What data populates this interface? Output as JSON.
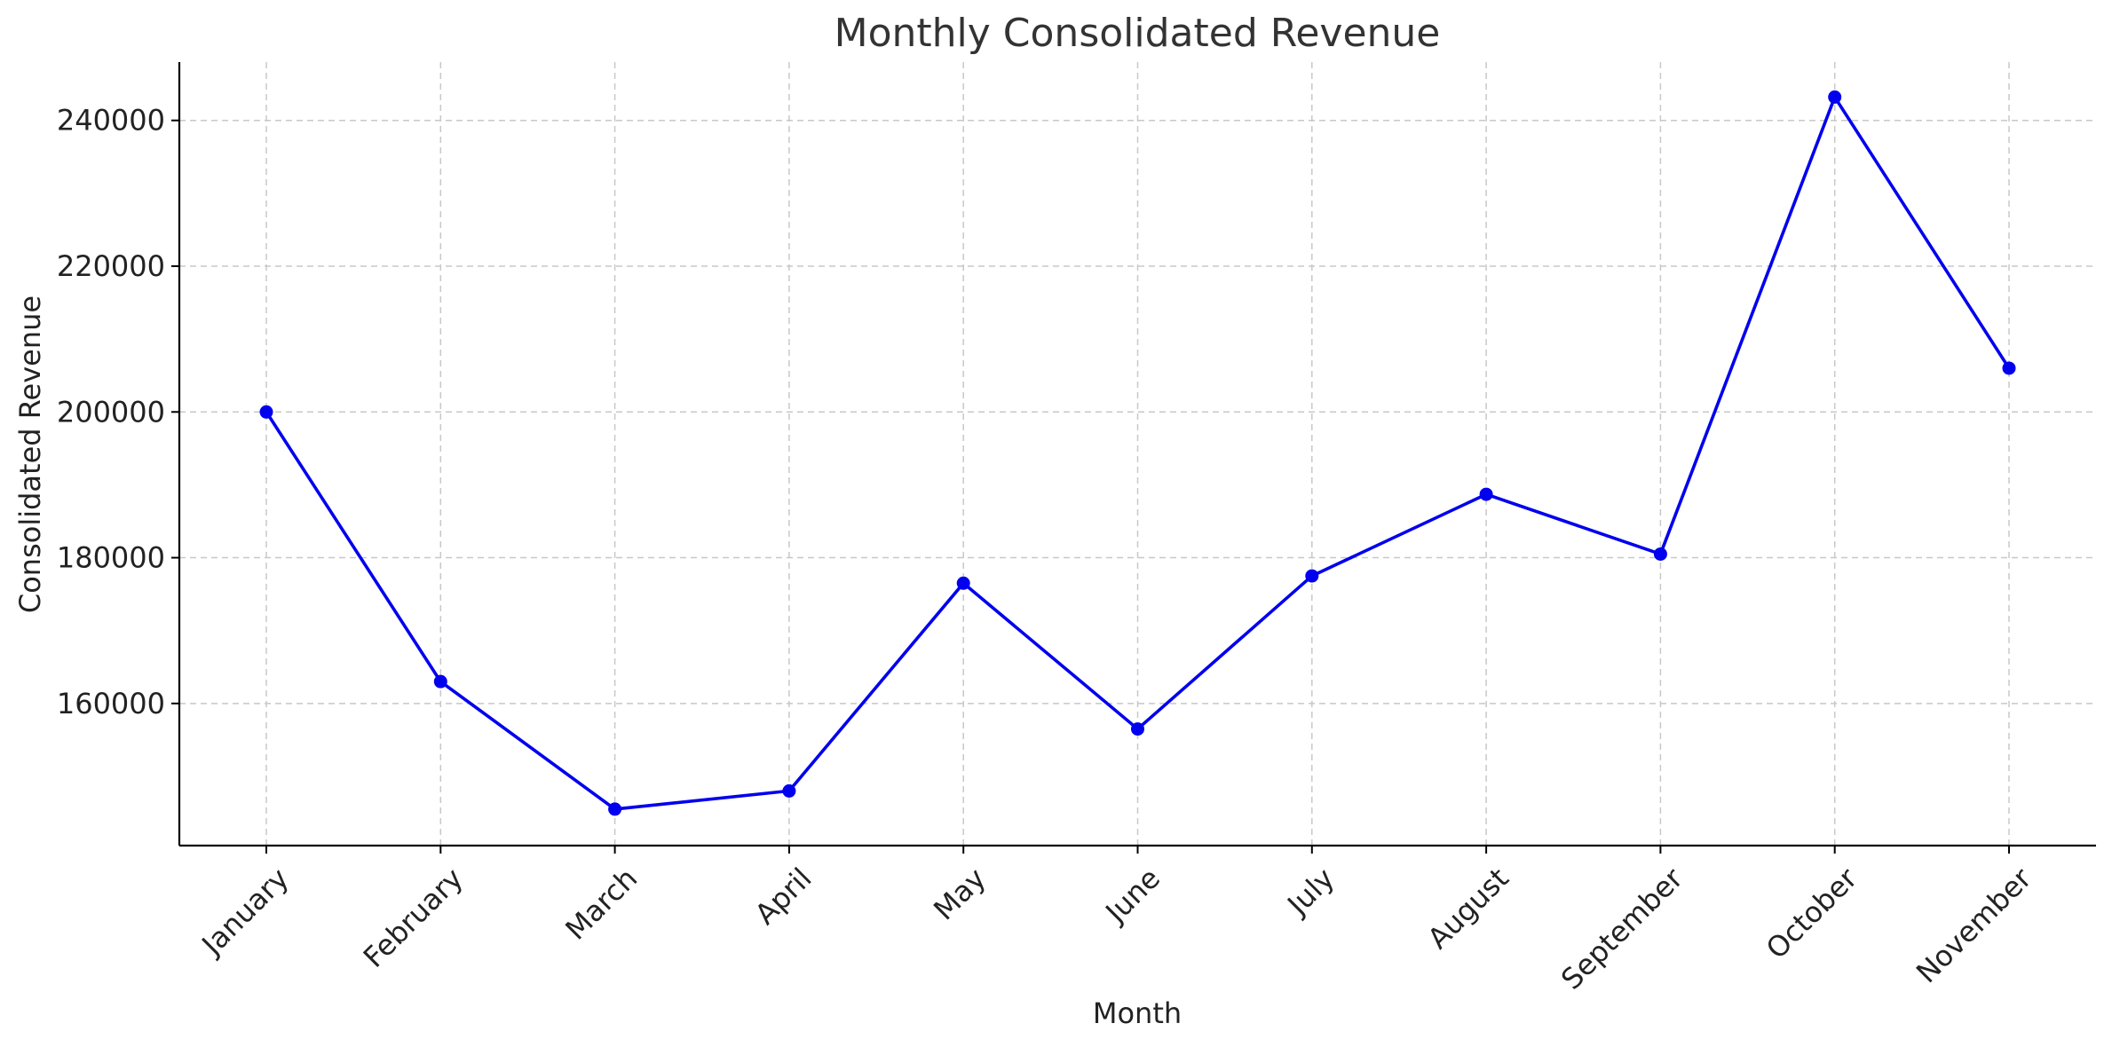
{
  "chart_data": {
    "type": "line",
    "title": "Monthly Consolidated Revenue",
    "xlabel": "Month",
    "ylabel": "Consolidated Revenue",
    "categories": [
      "January",
      "February",
      "March",
      "April",
      "May",
      "June",
      "July",
      "August",
      "September",
      "October",
      "November"
    ],
    "series": [
      {
        "values": [
          200000,
          163000,
          145500,
          148000,
          176500,
          156500,
          177500,
          188700,
          180500,
          243200,
          206000
        ],
        "color": "#0000ee",
        "marker": "circle"
      }
    ],
    "ylim": [
      140500,
      248000
    ],
    "yticks": [
      160000,
      180000,
      200000,
      220000,
      240000
    ],
    "grid": true,
    "grid_style": "dashed",
    "legend": "none"
  }
}
